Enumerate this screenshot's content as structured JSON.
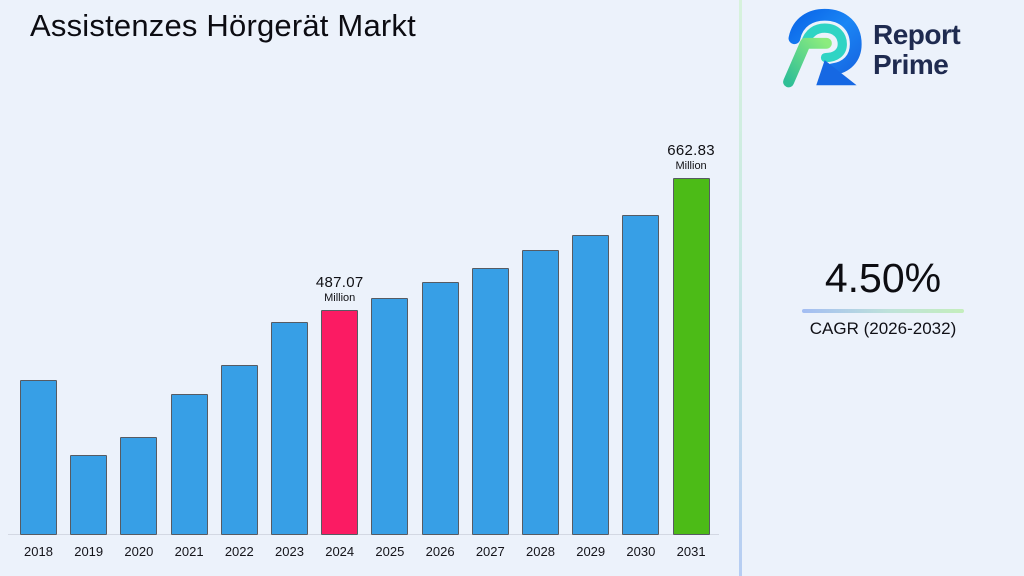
{
  "page": {
    "background": "#ecf2fb"
  },
  "header": {
    "title": "Assistenzes Hörgerät Markt"
  },
  "logo": {
    "name": "Report Prime",
    "line1": "Report",
    "line2": "Prime",
    "text_color": "#1f2b50"
  },
  "cagr_panel": {
    "value": "4.50%",
    "caption": "CAGR (2026-2032)"
  },
  "chart_data": {
    "type": "bar",
    "title": "Assistenzes Hörgerät Markt",
    "unit": "Million",
    "xlabel": "",
    "ylabel": "",
    "grid": false,
    "legend": false,
    "y_baseline_value": 187.5,
    "ylim": [
      187.5,
      700
    ],
    "categories": [
      "2018",
      "2019",
      "2020",
      "2021",
      "2022",
      "2023",
      "2024",
      "2025",
      "2026",
      "2027",
      "2028",
      "2029",
      "2030",
      "2031"
    ],
    "bars": [
      {
        "year": "2018",
        "value": 394,
        "estimated": true,
        "color": "blue"
      },
      {
        "year": "2019",
        "value": 294,
        "estimated": true,
        "color": "blue"
      },
      {
        "year": "2020",
        "value": 318,
        "estimated": true,
        "color": "blue"
      },
      {
        "year": "2021",
        "value": 375,
        "estimated": true,
        "color": "blue"
      },
      {
        "year": "2022",
        "value": 414,
        "estimated": true,
        "color": "blue"
      },
      {
        "year": "2023",
        "value": 471,
        "estimated": true,
        "color": "blue"
      },
      {
        "year": "2024",
        "value": 487.07,
        "estimated": false,
        "color": "pink",
        "data_label": "487.07",
        "data_label_unit": "Million"
      },
      {
        "year": "2025",
        "value": 503,
        "estimated": true,
        "color": "blue"
      },
      {
        "year": "2026",
        "value": 524,
        "estimated": true,
        "color": "blue"
      },
      {
        "year": "2027",
        "value": 543,
        "estimated": true,
        "color": "blue"
      },
      {
        "year": "2028",
        "value": 567,
        "estimated": true,
        "color": "blue"
      },
      {
        "year": "2029",
        "value": 587,
        "estimated": true,
        "color": "blue"
      },
      {
        "year": "2030",
        "value": 614,
        "estimated": true,
        "color": "blue"
      },
      {
        "year": "2031",
        "value": 662.83,
        "estimated": false,
        "color": "green",
        "data_label": "662.83",
        "data_label_unit": "Million"
      }
    ],
    "colors": {
      "blue": "#379fe6",
      "pink": "#fb1b63",
      "green": "#4cbb17",
      "bar_border": "#565b63"
    }
  }
}
